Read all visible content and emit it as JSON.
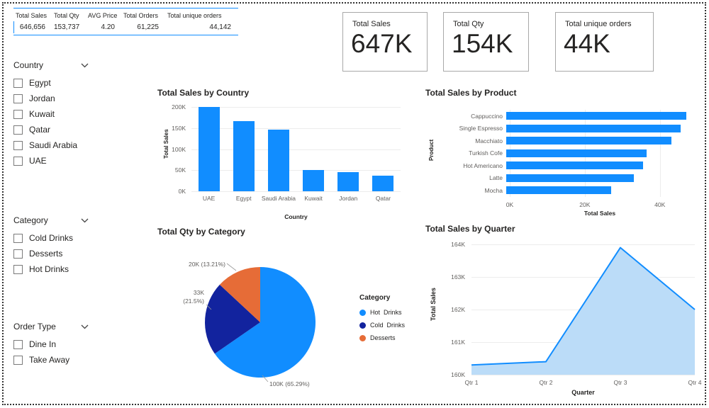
{
  "colors": {
    "accent": "#118DFF",
    "dark_blue": "#12239E",
    "orange": "#E66C37",
    "area_fill": "#BBDCF8",
    "axis_text": "#605E5C"
  },
  "table": {
    "headers": [
      "Total Sales",
      "Total Qty",
      "AVG Price",
      "Total Orders",
      "Total unique orders"
    ],
    "values": [
      "646,656",
      "153,737",
      "4.20",
      "61,225",
      "44,142"
    ]
  },
  "kpis": [
    {
      "label": "Total Sales",
      "value": "647K"
    },
    {
      "label": "Total Qty",
      "value": "154K"
    },
    {
      "label": "Total unique orders",
      "value": "44K"
    }
  ],
  "slicers": [
    {
      "title": "Country",
      "items": [
        "Egypt",
        "Jordan",
        "Kuwait",
        "Qatar",
        "Saudi Arabia",
        "UAE"
      ]
    },
    {
      "title": "Category",
      "items": [
        "Cold Drinks",
        "Desserts",
        "Hot Drinks"
      ]
    },
    {
      "title": "Order Type",
      "items": [
        "Dine In",
        "Take Away"
      ]
    }
  ],
  "chart_data": [
    {
      "type": "bar",
      "title": "Total Sales by Country",
      "categories": [
        "UAE",
        "Egypt",
        "Saudi Arabia",
        "Kuwait",
        "Jordan",
        "Qatar"
      ],
      "values": [
        200000,
        166000,
        146000,
        50000,
        45000,
        37000
      ],
      "xlabel": "Country",
      "ylabel": "Total Sales",
      "ylim": [
        0,
        200000
      ],
      "yticks": [
        "0K",
        "50K",
        "100K",
        "150K",
        "200K"
      ],
      "legend": "none",
      "grid": "horizontal"
    },
    {
      "type": "bar-horizontal",
      "title": "Total Sales by Product",
      "categories": [
        "Cappuccino",
        "Single Espresso",
        "Macchiato",
        "Turkish Cofe",
        "Hot Americano",
        "Latte",
        "Mocha"
      ],
      "values": [
        48000,
        46500,
        44000,
        37500,
        36500,
        34000,
        28000
      ],
      "xlabel": "Total Sales",
      "ylabel": "Product",
      "xlim": [
        0,
        48000
      ],
      "xticks": [
        "0K",
        "20K",
        "40K"
      ],
      "legend": "none",
      "grid": "vertical"
    },
    {
      "type": "pie",
      "title": "Total Qty by Category",
      "categories": [
        "Hot Drinks",
        "Cold Drinks",
        "Desserts"
      ],
      "values": [
        100000,
        33000,
        20000
      ],
      "labels": [
        "100K (65.29%)",
        "33K (21.5%)",
        "20K (13.21%)"
      ],
      "colors": [
        "#118DFF",
        "#12239E",
        "#E66C37"
      ],
      "legend_title": "Category",
      "legend_items": [
        "Hot  Drinks",
        "Cold  Drinks",
        "Desserts"
      ],
      "legend_position": "right"
    },
    {
      "type": "area",
      "title": "Total Sales by Quarter",
      "categories": [
        "Qtr 1",
        "Qtr 2",
        "Qtr 3",
        "Qtr 4"
      ],
      "values": [
        160300,
        160400,
        163900,
        162000
      ],
      "xlabel": "Quarter",
      "ylabel": "Total Sales",
      "ylim": [
        160000,
        164000
      ],
      "yticks": [
        "160K",
        "161K",
        "162K",
        "163K",
        "164K"
      ],
      "legend": "none",
      "grid": "horizontal"
    }
  ]
}
